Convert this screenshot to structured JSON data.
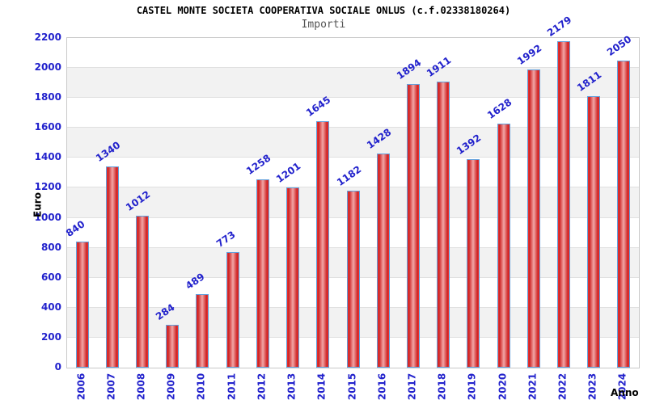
{
  "chart_data": {
    "type": "bar",
    "title": "CASTEL MONTE SOCIETA COOPERATIVA SOCIALE ONLUS (c.f.02338180264)",
    "subtitle": "Importi",
    "xlabel": "Anno",
    "ylabel": "Euro",
    "categories": [
      "2006",
      "2007",
      "2008",
      "2009",
      "2010",
      "2011",
      "2012",
      "2013",
      "2014",
      "2015",
      "2016",
      "2017",
      "2018",
      "2019",
      "2020",
      "2021",
      "2022",
      "2023",
      "2024"
    ],
    "values": [
      840,
      1340,
      1012,
      284,
      489,
      773,
      1258,
      1201,
      1645,
      1182,
      1428,
      1894,
      1911,
      1392,
      1628,
      1992,
      2179,
      1811,
      2050
    ],
    "ylim": [
      0,
      2200
    ],
    "ytick_step": 200,
    "yticks": [
      "0",
      "200",
      "400",
      "600",
      "800",
      "1000",
      "1200",
      "1400",
      "1600",
      "1800",
      "2000",
      "2200"
    ],
    "grid": true,
    "legend": "none",
    "band_pattern": "alternating horizontal bands between gridlines",
    "colors": {
      "background": "#ffffff",
      "title_text": "#000000",
      "subtitle_text": "#555555",
      "axis_text": "#000000",
      "label_blue": "#2222cc",
      "bar_border": "#63a0dc",
      "bar_edge": "#ee3434",
      "bar_dark": "#cd2121",
      "bar_mid": "#f2a6a6",
      "band": "#f2f2f2",
      "gridline": "#e0e0e0",
      "plot_border": "#c9c9c9"
    }
  }
}
